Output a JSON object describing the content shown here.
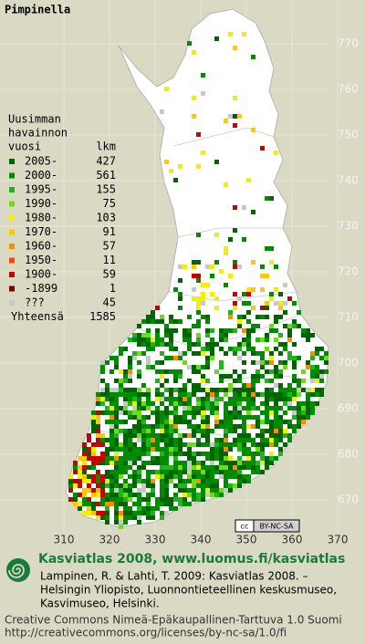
{
  "title": "Pimpinella",
  "legend": {
    "header": [
      "Uusimman",
      "havainnon",
      "vuosi"
    ],
    "count_header": "lkm",
    "entries": [
      {
        "label": "2005-",
        "count": 427,
        "color": "#006400"
      },
      {
        "label": "2000-",
        "count": 561,
        "color": "#008c00"
      },
      {
        "label": "1995-",
        "count": 155,
        "color": "#22b41e"
      },
      {
        "label": "1990-",
        "count": 75,
        "color": "#6edc14"
      },
      {
        "label": "1980-",
        "count": 103,
        "color": "#f0f000"
      },
      {
        "label": "1970-",
        "count": 91,
        "color": "#ffc800"
      },
      {
        "label": "1960-",
        "count": 57,
        "color": "#ff8c00"
      },
      {
        "label": "1950-",
        "count": 11,
        "color": "#ff4600"
      },
      {
        "label": "1900-",
        "count": 59,
        "color": "#c80000"
      },
      {
        "label": "-1899",
        "count": 1,
        "color": "#780000"
      },
      {
        "label": "???",
        "count": 45,
        "color": "#c8c8c8"
      }
    ],
    "total_label": "Yhteensä",
    "total": 1585
  },
  "grid": {
    "y_labels": [
      770,
      760,
      750,
      740,
      730,
      720,
      710,
      700,
      690,
      680,
      670
    ],
    "x_labels": [
      310,
      320,
      330,
      340,
      350,
      360,
      370
    ]
  },
  "badge": {
    "cc": "cc",
    "text": "BY-NC-SA"
  },
  "footer": {
    "atlas": "Kasviatlas 2008, www.luomus.fi/kasviatlas",
    "citation": [
      "Lampinen, R. & Lahti, T. 2009: Kasviatlas 2008. –",
      "Helsingin Yliopisto, Luonnontieteellinen keskusmuseo,",
      "Kasvimuseo, Helsinki."
    ],
    "license": [
      "Creative Commons Nimeä-Epäkaupallinen-Tarttuva 1.0 Suomi",
      "http://creativecommons.org/licenses/by-nc-sa/1.0/fi"
    ]
  }
}
